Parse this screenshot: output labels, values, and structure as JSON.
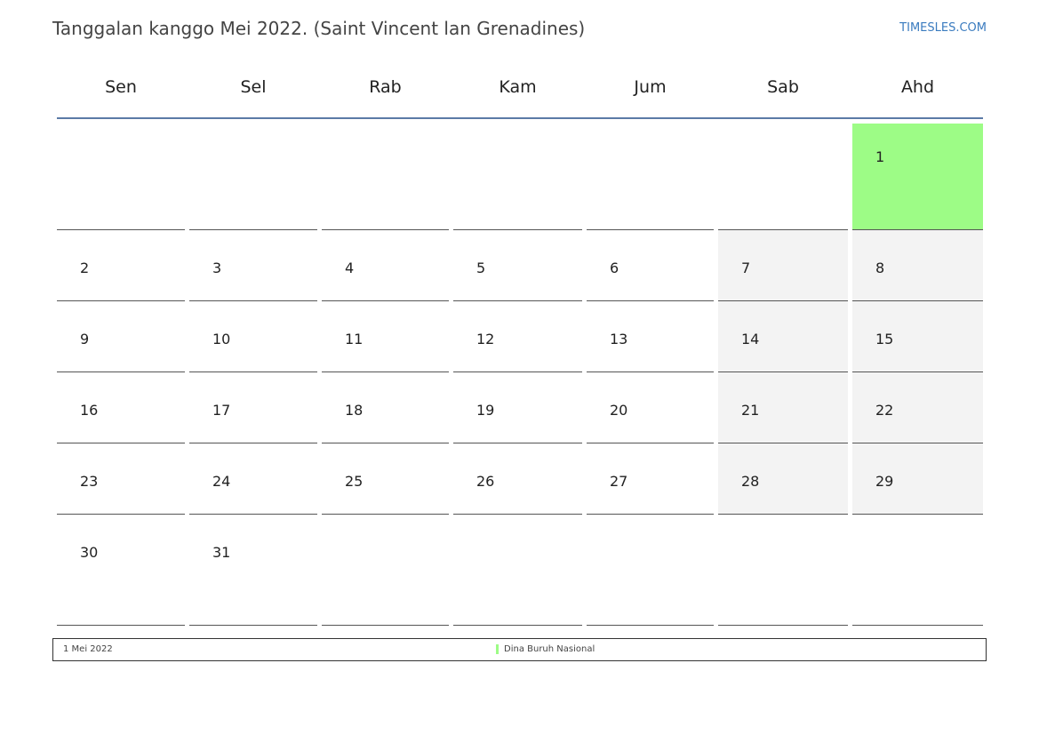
{
  "header": {
    "title": "Tanggalan kanggo Mei 2022. (Saint Vincent lan Grenadines)",
    "brand": "TIMESLES.COM"
  },
  "colors": {
    "holiday": "#9dfc86",
    "weekend": "#f3f3f3",
    "header_rule": "#5b7aa6",
    "brand": "#3a7bbf"
  },
  "calendar": {
    "weekdays": [
      "Sen",
      "Sel",
      "Rab",
      "Kam",
      "Jum",
      "Sab",
      "Ahd"
    ],
    "weeks": [
      [
        "",
        "",
        "",
        "",
        "",
        "",
        "1"
      ],
      [
        "2",
        "3",
        "4",
        "5",
        "6",
        "7",
        "8"
      ],
      [
        "9",
        "10",
        "11",
        "12",
        "13",
        "14",
        "15"
      ],
      [
        "16",
        "17",
        "18",
        "19",
        "20",
        "21",
        "22"
      ],
      [
        "23",
        "24",
        "25",
        "26",
        "27",
        "28",
        "29"
      ],
      [
        "30",
        "31",
        "",
        "",
        "",
        "",
        ""
      ]
    ],
    "holiday_days": [
      "1"
    ]
  },
  "legend": {
    "date": "1 Mei 2022",
    "holiday_name": "Dina Buruh Nasional"
  }
}
